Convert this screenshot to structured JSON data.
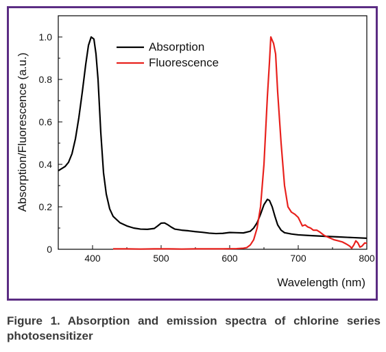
{
  "caption": "Figure 1. Absorption and emission spectra of chlorine series photosensitizer",
  "colors": {
    "frame": "#5b2c83",
    "absorption": "#000000",
    "fluorescence": "#e8201c"
  },
  "chart_data": {
    "type": "line",
    "title": "",
    "xlabel": "Wavelength (nm)",
    "ylabel": "Absorption/Fluorescence (a.u.)",
    "xlim": [
      350,
      800
    ],
    "ylim": [
      0,
      1.1
    ],
    "xticks": [
      "400",
      "500",
      "600",
      "700",
      "800"
    ],
    "yticks": [
      "0",
      "0.2",
      "0.4",
      "0.6",
      "0.8",
      "1.0"
    ],
    "legend_position": "top-center",
    "series": [
      {
        "name": "Absorption",
        "color": "#000000",
        "points": [
          [
            350,
            0.37
          ],
          [
            360,
            0.39
          ],
          [
            365,
            0.41
          ],
          [
            370,
            0.45
          ],
          [
            375,
            0.52
          ],
          [
            380,
            0.62
          ],
          [
            385,
            0.74
          ],
          [
            390,
            0.87
          ],
          [
            394,
            0.96
          ],
          [
            398,
            1.0
          ],
          [
            402,
            0.99
          ],
          [
            405,
            0.92
          ],
          [
            408,
            0.8
          ],
          [
            412,
            0.55
          ],
          [
            416,
            0.36
          ],
          [
            420,
            0.26
          ],
          [
            425,
            0.19
          ],
          [
            430,
            0.155
          ],
          [
            440,
            0.125
          ],
          [
            450,
            0.11
          ],
          [
            460,
            0.1
          ],
          [
            470,
            0.095
          ],
          [
            480,
            0.094
          ],
          [
            490,
            0.098
          ],
          [
            495,
            0.11
          ],
          [
            500,
            0.123
          ],
          [
            505,
            0.124
          ],
          [
            510,
            0.115
          ],
          [
            515,
            0.104
          ],
          [
            520,
            0.095
          ],
          [
            530,
            0.09
          ],
          [
            540,
            0.087
          ],
          [
            550,
            0.083
          ],
          [
            560,
            0.08
          ],
          [
            570,
            0.076
          ],
          [
            580,
            0.074
          ],
          [
            590,
            0.075
          ],
          [
            600,
            0.079
          ],
          [
            610,
            0.078
          ],
          [
            620,
            0.077
          ],
          [
            630,
            0.085
          ],
          [
            635,
            0.1
          ],
          [
            640,
            0.125
          ],
          [
            645,
            0.165
          ],
          [
            650,
            0.21
          ],
          [
            655,
            0.235
          ],
          [
            658,
            0.23
          ],
          [
            662,
            0.2
          ],
          [
            666,
            0.155
          ],
          [
            670,
            0.115
          ],
          [
            675,
            0.09
          ],
          [
            680,
            0.078
          ],
          [
            690,
            0.072
          ],
          [
            700,
            0.068
          ],
          [
            720,
            0.064
          ],
          [
            740,
            0.061
          ],
          [
            760,
            0.058
          ],
          [
            780,
            0.055
          ],
          [
            800,
            0.052
          ]
        ]
      },
      {
        "name": "Fluorescence",
        "color": "#e8201c",
        "points": [
          [
            430,
            0.002
          ],
          [
            450,
            0.002
          ],
          [
            470,
            0.001
          ],
          [
            490,
            0.002
          ],
          [
            510,
            0.002
          ],
          [
            530,
            0.001
          ],
          [
            550,
            0.002
          ],
          [
            570,
            0.002
          ],
          [
            590,
            0.002
          ],
          [
            610,
            0.003
          ],
          [
            620,
            0.005
          ],
          [
            625,
            0.008
          ],
          [
            630,
            0.02
          ],
          [
            635,
            0.045
          ],
          [
            640,
            0.1
          ],
          [
            645,
            0.2
          ],
          [
            650,
            0.4
          ],
          [
            655,
            0.72
          ],
          [
            658,
            0.88
          ],
          [
            660,
            1.0
          ],
          [
            664,
            0.97
          ],
          [
            667,
            0.92
          ],
          [
            670,
            0.74
          ],
          [
            675,
            0.5
          ],
          [
            680,
            0.3
          ],
          [
            685,
            0.2
          ],
          [
            690,
            0.175
          ],
          [
            695,
            0.165
          ],
          [
            700,
            0.15
          ],
          [
            703,
            0.13
          ],
          [
            706,
            0.11
          ],
          [
            710,
            0.115
          ],
          [
            714,
            0.105
          ],
          [
            718,
            0.1
          ],
          [
            722,
            0.09
          ],
          [
            727,
            0.09
          ],
          [
            732,
            0.08
          ],
          [
            738,
            0.065
          ],
          [
            745,
            0.055
          ],
          [
            752,
            0.045
          ],
          [
            758,
            0.04
          ],
          [
            764,
            0.035
          ],
          [
            770,
            0.025
          ],
          [
            775,
            0.015
          ],
          [
            778,
            0.005
          ],
          [
            781,
            0.02
          ],
          [
            784,
            0.04
          ],
          [
            787,
            0.03
          ],
          [
            790,
            0.01
          ],
          [
            793,
            0.015
          ],
          [
            797,
            0.03
          ],
          [
            800,
            0.028
          ]
        ]
      }
    ]
  }
}
